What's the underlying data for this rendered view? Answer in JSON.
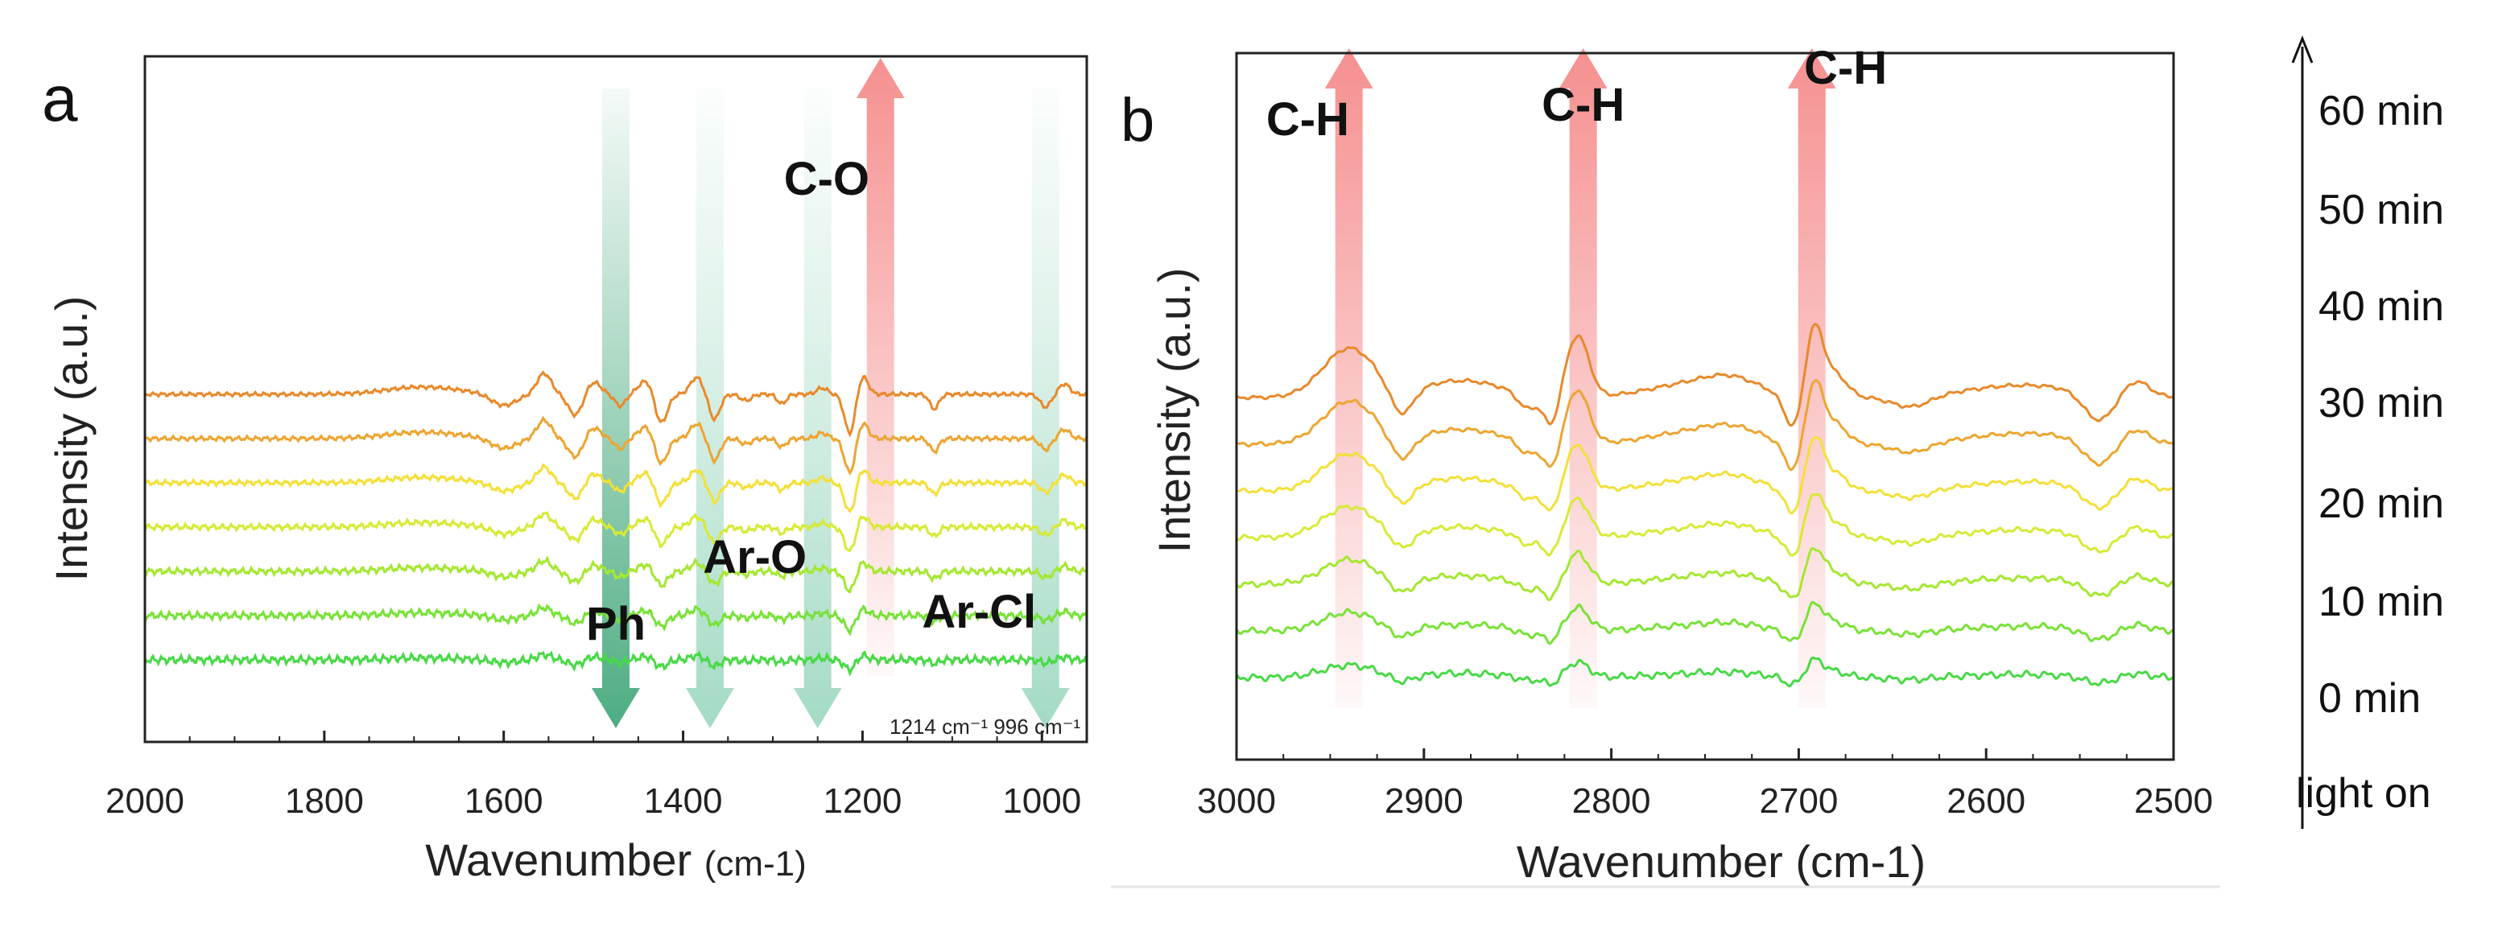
{
  "figure": {
    "legend_title": "",
    "time_labels": [
      "60 min",
      "50 min",
      "40 min",
      "30 min",
      "20 min",
      "10 min",
      "0 min",
      "light on"
    ]
  },
  "colors": {
    "series": [
      "#E8892A",
      "#EDA530",
      "#F3E038",
      "#D7EA36",
      "#A4E830",
      "#78E237",
      "#48D946"
    ],
    "up_arrow": "#F47C7C",
    "down_arrow": "#2E9E6B",
    "down_arrow_light": "#9ED8C1"
  },
  "chart_data": [
    {
      "panel": "a",
      "type": "line",
      "title": "",
      "xlabel": "Wavenumber",
      "xlabel_unit": "(cm-1)",
      "ylabel": "Intensity (a.u.)",
      "xlim": [
        2000,
        950
      ],
      "x_ticks": [
        2000,
        1800,
        1600,
        1400,
        1200,
        1000
      ],
      "x_tick_labels": [
        "2000",
        "1800",
        "1600",
        "1400",
        "1200",
        "1000"
      ],
      "grid": false,
      "series": [
        {
          "name": "60 min",
          "offset": 6.0
        },
        {
          "name": "50 min",
          "offset": 5.0
        },
        {
          "name": "40 min",
          "offset": 4.0
        },
        {
          "name": "30 min",
          "offset": 3.0
        },
        {
          "name": "20 min",
          "offset": 2.0
        },
        {
          "name": "10 min",
          "offset": 1.0
        },
        {
          "name": "0 min",
          "offset": 0.0
        }
      ],
      "peaks": [
        {
          "x": 1690,
          "w": 40,
          "a": 0.35
        },
        {
          "x": 1600,
          "w": 14,
          "a": -0.55
        },
        {
          "x": 1555,
          "w": 8,
          "a": 1.0
        },
        {
          "x": 1520,
          "w": 8,
          "a": -1.0
        },
        {
          "x": 1500,
          "w": 8,
          "a": 0.6
        },
        {
          "x": 1470,
          "w": 6,
          "a": -0.55
        },
        {
          "x": 1440,
          "w": 9,
          "a": 0.7
        },
        {
          "x": 1425,
          "w": 7,
          "a": -1.5
        },
        {
          "x": 1385,
          "w": 7,
          "a": 0.8
        },
        {
          "x": 1365,
          "w": 6,
          "a": -1.2
        },
        {
          "x": 1330,
          "w": 6,
          "a": -0.3
        },
        {
          "x": 1290,
          "w": 5,
          "a": -0.45
        },
        {
          "x": 1245,
          "w": 6,
          "a": 0.3
        },
        {
          "x": 1214,
          "w": 6,
          "a": -1.9
        },
        {
          "x": 1200,
          "w": 6,
          "a": 0.9
        },
        {
          "x": 1120,
          "w": 5,
          "a": -0.7
        },
        {
          "x": 996,
          "w": 6,
          "a": -0.6
        },
        {
          "x": 975,
          "w": 6,
          "a": 0.5
        }
      ],
      "annotations": [
        {
          "text": "C-O",
          "x": 1240,
          "direction": "up"
        },
        {
          "text": "Ph",
          "x": 1475,
          "direction": "down"
        },
        {
          "text": "Ar-O",
          "x": 1320,
          "direction": "down"
        },
        {
          "text": "Ar-Cl",
          "x": 1070,
          "direction": "down"
        }
      ],
      "arrows": [
        {
          "x": 1475,
          "direction": "down",
          "shade": "dark"
        },
        {
          "x": 1370,
          "direction": "down",
          "shade": "light"
        },
        {
          "x": 1250,
          "direction": "down",
          "shade": "light"
        },
        {
          "x": 1180,
          "direction": "up",
          "shade": "red"
        },
        {
          "x": 996,
          "direction": "down",
          "shade": "light"
        }
      ],
      "note_label": "1214 cm⁻¹ 996 cm⁻¹",
      "panel_label": "a"
    },
    {
      "panel": "b",
      "type": "line",
      "title": "",
      "xlabel": "Wavenumber",
      "xlabel_unit": "(cm-1)",
      "ylabel": "Intensity (a.u.)",
      "xlim": [
        3000,
        2500
      ],
      "x_ticks": [
        3000,
        2900,
        2800,
        2700,
        2600,
        2500
      ],
      "x_tick_labels": [
        "3000",
        "2900",
        "2800",
        "2700",
        "2600",
        "2500"
      ],
      "grid": false,
      "series": [
        {
          "name": "60 min",
          "offset": 6.0
        },
        {
          "name": "50 min",
          "offset": 5.0
        },
        {
          "name": "40 min",
          "offset": 4.0
        },
        {
          "name": "30 min",
          "offset": 3.0
        },
        {
          "name": "20 min",
          "offset": 2.0
        },
        {
          "name": "10 min",
          "offset": 1.0
        },
        {
          "name": "0 min",
          "offset": 0.0
        }
      ],
      "peaks": [
        {
          "x": 2940,
          "w": 14,
          "a": 1.6
        },
        {
          "x": 2912,
          "w": 6,
          "a": -0.9
        },
        {
          "x": 2880,
          "w": 22,
          "a": 0.55
        },
        {
          "x": 2845,
          "w": 5,
          "a": -0.5
        },
        {
          "x": 2832,
          "w": 4,
          "a": -1.0
        },
        {
          "x": 2818,
          "w": 6,
          "a": 2.0
        },
        {
          "x": 2760,
          "w": 22,
          "a": 0.4
        },
        {
          "x": 2735,
          "w": 15,
          "a": 0.5
        },
        {
          "x": 2702,
          "w": 5,
          "a": -1.2
        },
        {
          "x": 2692,
          "w": 5,
          "a": 2.4
        },
        {
          "x": 2680,
          "w": 6,
          "a": 0.7
        },
        {
          "x": 2640,
          "w": 10,
          "a": -0.35
        },
        {
          "x": 2580,
          "w": 30,
          "a": 0.4
        },
        {
          "x": 2540,
          "w": 8,
          "a": -0.9
        },
        {
          "x": 2520,
          "w": 7,
          "a": 0.5
        }
      ],
      "annotations": [
        {
          "text": "C-H",
          "x": 2962
        },
        {
          "text": "C-H",
          "x": 2815
        },
        {
          "text": "C-H",
          "x": 2675
        }
      ],
      "arrows": [
        {
          "x": 2940,
          "direction": "up",
          "shade": "red"
        },
        {
          "x": 2815,
          "direction": "up",
          "shade": "red"
        },
        {
          "x": 2693,
          "direction": "up",
          "shade": "red"
        }
      ],
      "panel_label": "b"
    }
  ]
}
